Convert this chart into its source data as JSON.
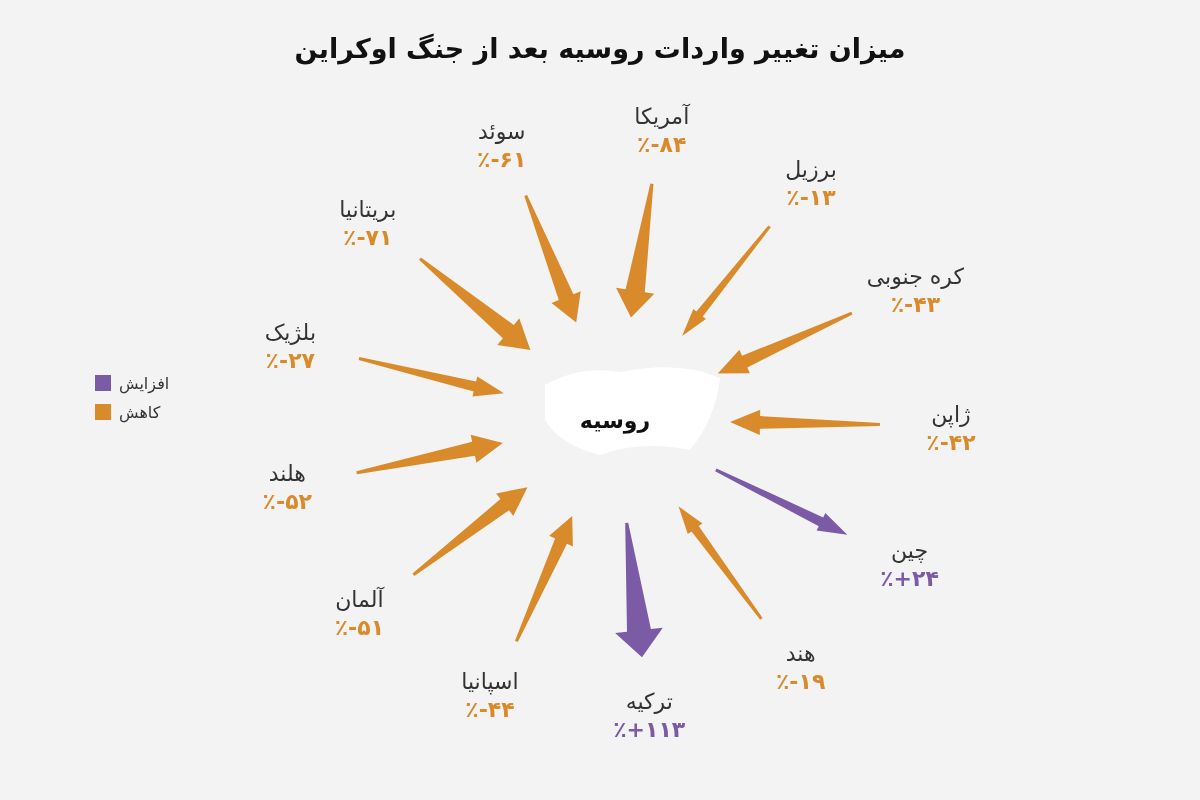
{
  "chart_data": {
    "type": "other",
    "title": "میزان تغییر واردات روسیه بعد از جنگ اوکراین",
    "categories": [
      "آمریکا",
      "برزیل",
      "کره جنوبی",
      "ژاپن",
      "چین",
      "هند",
      "ترکیه",
      "اسپانیا",
      "آلمان",
      "هلند",
      "بلژیک",
      "بریتانیا",
      "سوئد"
    ],
    "series": [
      {
        "name": "افزایش",
        "color": "#7b5ba6",
        "values": [
          null,
          null,
          null,
          null,
          24,
          null,
          113,
          null,
          null,
          null,
          null,
          null,
          null
        ],
        "value_labels": [
          null,
          null,
          null,
          null,
          "٪+۲۴",
          null,
          "٪+۱۱۳",
          null,
          null,
          null,
          null,
          null,
          null
        ]
      },
      {
        "name": "کاهش",
        "color": "#d98b2b",
        "values": [
          -84,
          -13,
          -43,
          -42,
          null,
          -19,
          null,
          -44,
          -51,
          -52,
          -27,
          -71,
          -61
        ],
        "value_labels": [
          "٪-۸۴",
          "٪-۱۳",
          "٪-۴۳",
          "٪-۴۲",
          null,
          "٪-۱۹",
          null,
          "٪-۴۴",
          "٪-۵۱",
          "٪-۵۲",
          "٪-۲۷",
          "٪-۷۱",
          "٪-۶۱"
        ]
      }
    ],
    "legend": "left",
    "annotations": [
      "روسیه"
    ]
  }
}
